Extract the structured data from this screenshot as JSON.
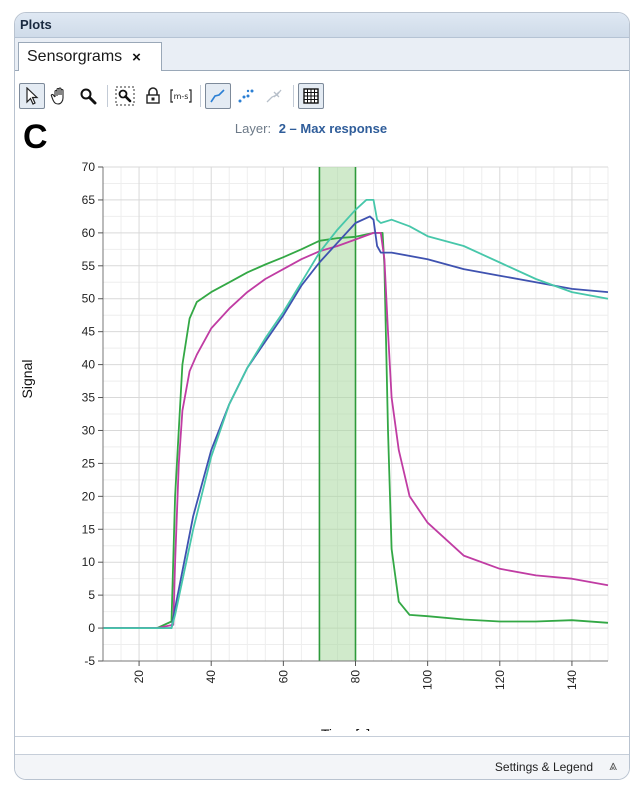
{
  "panel": {
    "title": "Plots"
  },
  "tab": {
    "label": "Sensorgrams",
    "close": "×"
  },
  "toolbar": {
    "buttons": [
      "pointer-icon",
      "pan-hand-icon",
      "zoom-icon",
      "zoom-region-icon",
      "lock-axis-icon",
      "fit-range-icon",
      "line-mode-icon",
      "point-mode-icon",
      "clear-points-icon",
      "grid-icon"
    ],
    "active": [
      "pointer-icon",
      "line-mode-icon",
      "grid-icon"
    ]
  },
  "panel_letter": "C",
  "chart_header": {
    "prefix": "Layer:",
    "layer": "2 – Max response"
  },
  "footer": {
    "settings_label": "Settings & Legend",
    "chevron": "⩓"
  },
  "chart_data": {
    "type": "line",
    "xlabel": "Time [s]",
    "ylabel": "Signal",
    "xlim": [
      10,
      150
    ],
    "ylim": [
      -5,
      70
    ],
    "xticks": [
      20,
      40,
      60,
      80,
      100,
      120,
      140
    ],
    "yticks": [
      -5,
      0,
      5,
      10,
      15,
      20,
      25,
      30,
      35,
      40,
      45,
      50,
      55,
      60,
      65,
      70
    ],
    "grid": true,
    "highlight": {
      "x_start": 70,
      "x_end": 80,
      "color": "#a9d9a0"
    },
    "series": [
      {
        "color": "#33a845",
        "x": [
          10,
          25,
          29,
          30,
          32,
          34,
          36,
          40,
          45,
          50,
          55,
          60,
          65,
          70,
          75,
          80,
          85,
          87.5,
          88,
          89,
          90,
          92,
          95,
          100,
          110,
          120,
          130,
          140,
          150
        ],
        "y": [
          0,
          0,
          1,
          20,
          40,
          47,
          49.5,
          51,
          52.5,
          54,
          55.2,
          56.3,
          57.5,
          58.8,
          59.2,
          59.4,
          60,
          60,
          55,
          30,
          12,
          4,
          2,
          1.8,
          1.3,
          1.0,
          1.0,
          1.2,
          0.8
        ]
      },
      {
        "color": "#c03ca3",
        "x": [
          10,
          25,
          29.5,
          30,
          31,
          32,
          34,
          36,
          40,
          45,
          50,
          55,
          60,
          65,
          70,
          75,
          80,
          85,
          87,
          88,
          89,
          90,
          92,
          95,
          100,
          110,
          120,
          130,
          140,
          150
        ],
        "y": [
          0,
          0,
          0.5,
          10,
          25,
          33,
          39,
          41.5,
          45.5,
          48.5,
          51,
          53,
          54.5,
          56,
          57.2,
          58,
          59,
          60,
          60,
          56,
          45,
          35,
          27,
          20,
          16,
          11,
          9,
          8,
          7.5,
          6.5
        ]
      },
      {
        "color": "#3f52b0",
        "x": [
          10,
          25,
          29,
          30,
          35,
          40,
          45,
          50,
          55,
          60,
          65,
          70,
          75,
          80,
          84,
          85,
          86,
          87,
          90,
          100,
          110,
          120,
          130,
          140,
          150
        ],
        "y": [
          0,
          0,
          0,
          3,
          17,
          27,
          34,
          39.5,
          43.5,
          47.5,
          52,
          55.5,
          58.5,
          61.5,
          62.5,
          62,
          58,
          57,
          57,
          56,
          54.5,
          53.5,
          52.5,
          51.5,
          51
        ]
      },
      {
        "color": "#47c7aa",
        "x": [
          10,
          25,
          29,
          30,
          35,
          40,
          45,
          50,
          55,
          60,
          65,
          70,
          75,
          80,
          83,
          85,
          86,
          87,
          90,
          95,
          100,
          110,
          120,
          130,
          140,
          150
        ],
        "y": [
          0,
          0,
          0,
          2,
          15,
          26,
          34,
          39.5,
          44,
          48,
          52.5,
          57,
          60.5,
          63.5,
          65,
          65,
          62,
          61.5,
          62,
          61,
          59.5,
          58,
          55.5,
          53,
          51,
          50
        ]
      }
    ]
  }
}
